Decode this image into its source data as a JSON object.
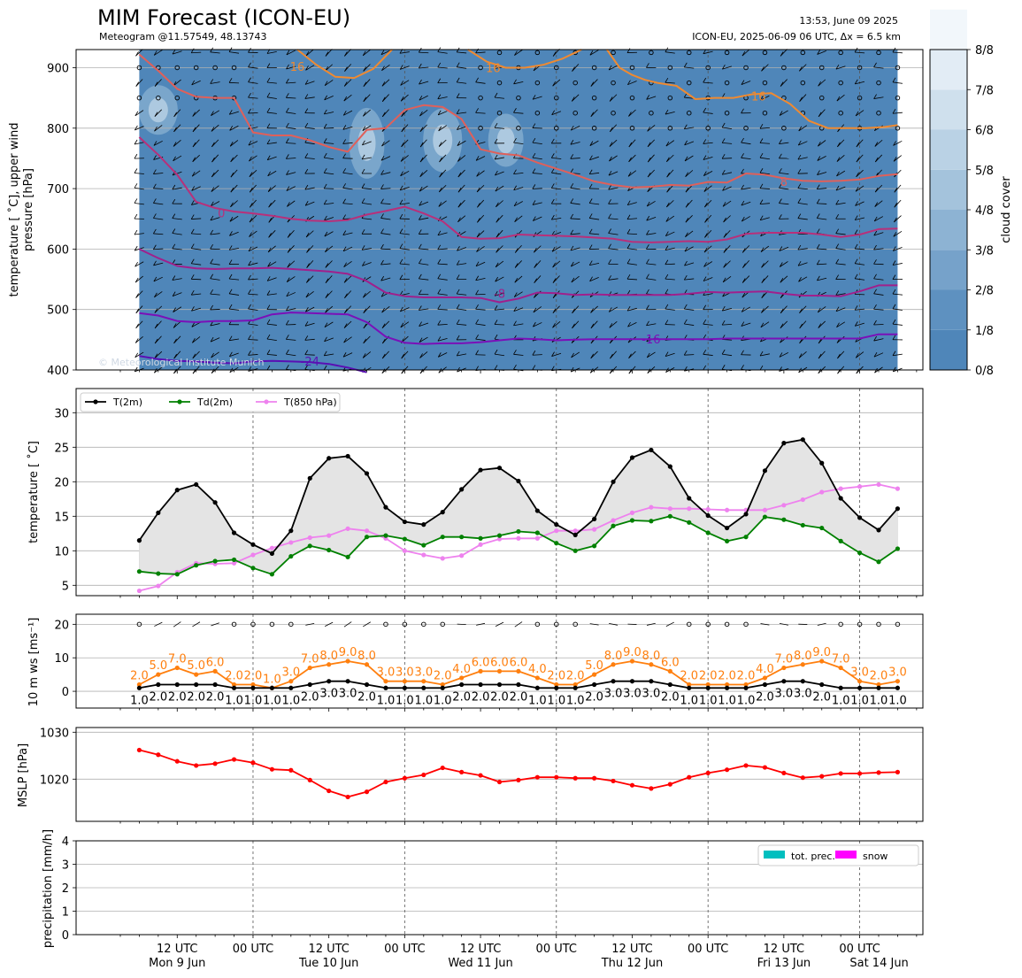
{
  "header": {
    "title": "MIM Forecast (ICON-EU)",
    "subtitle": "Meteogram @11.57549, 48.13743",
    "timestamp": "13:53, June 09 2025",
    "run_info": "ICON-EU, 2025-06-09 06 UTC, Δx = 6.5 km"
  },
  "colors": {
    "cloud_base": "#4f86b9",
    "t2m": "#000000",
    "td2m": "#008000",
    "t850": "#ee82ee",
    "wind_speed": "#ff7f0e",
    "mslp": "#ff0000",
    "tot_prec": "#00bfbf",
    "snow": "#ff00ff"
  },
  "time_axis": {
    "tick_labels": [
      {
        "line1": "12 UTC",
        "line2": "Mon 9 Jun",
        "hour": 12
      },
      {
        "line1": "00 UTC",
        "line2": "",
        "hour": 24
      },
      {
        "line1": "12 UTC",
        "line2": "Tue 10 Jun",
        "hour": 36
      },
      {
        "line1": "00 UTC",
        "line2": "",
        "hour": 48
      },
      {
        "line1": "12 UTC",
        "line2": "Wed 11 Jun",
        "hour": 60
      },
      {
        "line1": "00 UTC",
        "line2": "",
        "hour": 72
      },
      {
        "line1": "12 UTC",
        "line2": "Thu 12 Jun",
        "hour": 84
      },
      {
        "line1": "00 UTC",
        "line2": "",
        "hour": 96
      },
      {
        "line1": "12 UTC",
        "line2": "Fri 13 Jun",
        "hour": 108
      },
      {
        "line1": "00 UTC",
        "line2": "Sat 14 Jun",
        "hour": 120
      }
    ]
  },
  "chart_data": [
    {
      "type": "heatmap",
      "panel": "upper-air",
      "ylabel": "temperature [$^\\circ$C], upper wind\npressure [hPa]",
      "ylabel_lines": [
        "temperature [ ˚C], upper wind",
        "pressure [hPa]"
      ],
      "yticks": [
        400,
        500,
        600,
        700,
        800,
        900
      ],
      "ylim": [
        930,
        400
      ],
      "colorbar": {
        "label": "cloud cover",
        "ticks": [
          "0/8",
          "1/8",
          "2/8",
          "3/8",
          "4/8",
          "5/8",
          "6/8",
          "7/8",
          "8/8"
        ],
        "colors": [
          "#4f86b9",
          "#5e91c0",
          "#76a2ca",
          "#8db3d3",
          "#a4c3dc",
          "#bad2e5",
          "#cfe0ed",
          "#e2ecf5",
          "#f2f7fb"
        ]
      },
      "isotherm_labels": [
        "-24",
        "-16",
        "-8",
        "0",
        "8",
        "16",
        "16",
        "16"
      ],
      "isotherms": [
        {
          "label": "-24",
          "color": "#5a0fb4",
          "x": [
            6,
            9,
            12,
            15,
            18,
            21,
            24,
            27,
            30,
            33,
            36,
            39,
            42
          ],
          "y": [
            423,
            418,
            415,
            414,
            412,
            411,
            414,
            415,
            414,
            413,
            410,
            404,
            396
          ]
        },
        {
          "label": "-16",
          "color": "#7a10b8",
          "x": [
            6,
            9,
            12,
            15,
            18,
            21,
            24,
            27,
            30,
            33,
            36,
            39,
            42,
            45,
            48,
            51,
            54,
            57,
            60,
            63,
            66,
            69,
            72,
            75,
            78,
            81,
            84,
            87,
            90,
            93,
            96,
            99,
            102,
            105,
            108,
            111,
            114,
            117,
            120,
            123,
            126
          ],
          "y": [
            494,
            490,
            481,
            479,
            481,
            481,
            482,
            492,
            495,
            494,
            493,
            492,
            479,
            455,
            445,
            443,
            444,
            444,
            446,
            449,
            452,
            451,
            449,
            450,
            451,
            451,
            451,
            451,
            451,
            451,
            451,
            452,
            452,
            452,
            452,
            452,
            452,
            452,
            452,
            459,
            459
          ]
        },
        {
          "label": "-8",
          "color": "#a0208c",
          "x": [
            6,
            9,
            12,
            15,
            18,
            21,
            24,
            27,
            30,
            33,
            36,
            39,
            42,
            45,
            48,
            51,
            54,
            57,
            60,
            63,
            66,
            69,
            72,
            75,
            78,
            81,
            84,
            87,
            90,
            93,
            96,
            99,
            102,
            105,
            108,
            111,
            114,
            117,
            120,
            123,
            126
          ],
          "y": [
            600,
            585,
            572,
            568,
            567,
            568,
            568,
            569,
            567,
            565,
            563,
            559,
            547,
            528,
            522,
            520,
            520,
            520,
            519,
            512,
            518,
            528,
            527,
            524,
            525,
            524,
            524,
            524,
            524,
            526,
            529,
            528,
            529,
            530,
            526,
            523,
            523,
            522,
            530,
            540,
            540
          ]
        },
        {
          "label": "0",
          "color": "#b8307a",
          "x": [
            6,
            9,
            12,
            15,
            18,
            21,
            24,
            27,
            30,
            33,
            36,
            39,
            42,
            45,
            48,
            51,
            54,
            57,
            60,
            63,
            66,
            69,
            72,
            75,
            78,
            81,
            84,
            87,
            90,
            93,
            96,
            99,
            102,
            105,
            108,
            111,
            114,
            117,
            120,
            123,
            126
          ],
          "y": [
            785,
            756,
            723,
            678,
            668,
            662,
            659,
            655,
            650,
            647,
            646,
            648,
            657,
            663,
            670,
            659,
            646,
            620,
            617,
            618,
            624,
            623,
            622,
            621,
            619,
            617,
            612,
            611,
            612,
            613,
            612,
            616,
            625,
            627,
            627,
            627,
            624,
            620,
            624,
            633,
            634
          ]
        },
        {
          "label": "8",
          "color": "#e0605a",
          "x": [
            6,
            9,
            12,
            15,
            18,
            21,
            24,
            27,
            30,
            33,
            36,
            39,
            42,
            45,
            48,
            51,
            54,
            57,
            60,
            63,
            66,
            69,
            72,
            75,
            78,
            81,
            84,
            87,
            90,
            93,
            96,
            99,
            102,
            105,
            108,
            111,
            114,
            117,
            120,
            123,
            126
          ],
          "y": [
            922,
            895,
            865,
            852,
            850,
            850,
            793,
            788,
            788,
            780,
            769,
            761,
            797,
            800,
            830,
            838,
            835,
            815,
            765,
            758,
            755,
            743,
            733,
            723,
            712,
            706,
            702,
            703,
            706,
            705,
            711,
            710,
            725,
            723,
            717,
            713,
            712,
            713,
            715,
            721,
            724
          ]
        },
        {
          "label": "16",
          "color": "#f08a30",
          "x": [
            31,
            34,
            37,
            40,
            43,
            46
          ],
          "y": [
            930,
            905,
            885,
            883,
            898,
            930
          ]
        },
        {
          "label": "16",
          "color": "#f08a30",
          "x": [
            58,
            61,
            64,
            67,
            70,
            73,
            76
          ],
          "y": [
            930,
            910,
            900,
            900,
            905,
            915,
            930
          ]
        },
        {
          "label": "16",
          "color": "#f08a30",
          "x": [
            80,
            82,
            84,
            86,
            88,
            91,
            94,
            97,
            100,
            103,
            106,
            109,
            112,
            115,
            118,
            121,
            124,
            126
          ],
          "y": [
            930,
            900,
            888,
            880,
            875,
            870,
            848,
            850,
            850,
            856,
            858,
            840,
            812,
            800,
            800,
            800,
            802,
            805
          ]
        }
      ]
    },
    {
      "type": "line",
      "panel": "temperature",
      "ylabel": "temperature [ ˚C]",
      "ylim": [
        3.5,
        33.5
      ],
      "yticks": [
        5,
        10,
        15,
        20,
        25,
        30
      ],
      "legend": [
        "T(2m)",
        "Td(2m)",
        "T(850 hPa)"
      ],
      "legend_loc": "upper left",
      "grid": true,
      "x": [
        6,
        9,
        12,
        15,
        18,
        21,
        24,
        27,
        30,
        33,
        36,
        39,
        42,
        45,
        48,
        51,
        54,
        57,
        60,
        63,
        66,
        69,
        72,
        75,
        78,
        81,
        84,
        87,
        90,
        93,
        96,
        99,
        102,
        105,
        108,
        111,
        114,
        117,
        120,
        123,
        126
      ],
      "series": [
        {
          "name": "T(2m)",
          "values": [
            11.5,
            15.5,
            18.8,
            19.6,
            17.0,
            12.6,
            10.9,
            9.6,
            12.9,
            20.5,
            23.4,
            23.7,
            21.2,
            16.3,
            14.2,
            13.8,
            15.6,
            18.9,
            21.7,
            22.0,
            20.1,
            15.8,
            13.8,
            12.3,
            14.6,
            20.0,
            23.5,
            24.6,
            22.2,
            17.6,
            15.1,
            13.3,
            15.3,
            21.6,
            25.6,
            26.1,
            22.7,
            17.6,
            14.8,
            13.0,
            16.1
          ]
        },
        {
          "name": "Td(2m)",
          "values": [
            7.0,
            6.7,
            6.6,
            7.9,
            8.5,
            8.7,
            7.5,
            6.6,
            9.2,
            10.7,
            10.1,
            9.1,
            12.0,
            12.2,
            11.7,
            10.8,
            12.0,
            12.0,
            11.8,
            12.2,
            12.8,
            12.6,
            11.1,
            10.0,
            10.7,
            13.6,
            14.4,
            14.3,
            15.0,
            14.1,
            12.6,
            11.4,
            12.0,
            14.9,
            14.5,
            13.7,
            13.3,
            11.4,
            9.7,
            8.4,
            10.3
          ]
        },
        {
          "name": "T(850 hPa)",
          "values": [
            4.2,
            4.9,
            6.9,
            8.2,
            8.1,
            8.2,
            9.4,
            10.4,
            11.2,
            11.9,
            12.2,
            13.2,
            12.9,
            11.8,
            10.0,
            9.4,
            8.9,
            9.3,
            10.9,
            11.7,
            11.8,
            11.8,
            12.9,
            12.9,
            13.1,
            14.4,
            15.5,
            16.3,
            16.1,
            16.1,
            16.0,
            15.9,
            15.9,
            15.9,
            16.6,
            17.4,
            18.5,
            19.0,
            19.3,
            19.6,
            19.0
          ]
        }
      ]
    },
    {
      "type": "line",
      "panel": "wind",
      "ylabel": "10 m ws [ms⁻¹]",
      "ylim": [
        -5,
        23
      ],
      "yticks": [
        0,
        10,
        20
      ],
      "grid": true,
      "x": [
        6,
        9,
        12,
        15,
        18,
        21,
        24,
        27,
        30,
        33,
        36,
        39,
        42,
        45,
        48,
        51,
        54,
        57,
        60,
        63,
        66,
        69,
        72,
        75,
        78,
        81,
        84,
        87,
        90,
        93,
        96,
        99,
        102,
        105,
        108,
        111,
        114,
        117,
        120,
        123,
        126
      ],
      "series": [
        {
          "name": "gusts",
          "values": [
            2.0,
            5.0,
            7.0,
            5.0,
            6.0,
            2.0,
            2.0,
            1.0,
            3.0,
            7.0,
            8.0,
            9.0,
            8.0,
            3.0,
            3.0,
            3.0,
            2.0,
            4.0,
            6.0,
            6.0,
            6.0,
            4.0,
            2.0,
            2.0,
            5.0,
            8.0,
            9.0,
            8.0,
            6.0,
            2.0,
            2.0,
            2.0,
            2.0,
            4.0,
            7.0,
            8.0,
            9.0,
            7.0,
            3.0,
            2.0,
            3.0
          ]
        },
        {
          "name": "mean",
          "values": [
            1.0,
            2.0,
            2.0,
            2.0,
            2.0,
            1.0,
            1.0,
            1.0,
            1.0,
            2.0,
            3.0,
            3.0,
            2.0,
            1.0,
            1.0,
            1.0,
            1.0,
            2.0,
            2.0,
            2.0,
            2.0,
            1.0,
            1.0,
            1.0,
            2.0,
            3.0,
            3.0,
            3.0,
            2.0,
            1.0,
            1.0,
            1.0,
            1.0,
            2.0,
            3.0,
            3.0,
            2.0,
            1.0,
            1.0,
            1.0,
            1.0
          ]
        }
      ],
      "label_values": {
        "gusts": [
          "2.0",
          "5.0",
          "7.0",
          "5.0",
          "6.0",
          "2.0",
          "2.0",
          "1.0",
          "3.0",
          "7.0",
          "8.0",
          "9.0",
          "8.0",
          "3.0",
          "3.0",
          "3.0",
          "2.0",
          "4.0",
          "6.0",
          "6.0",
          "6.0",
          "4.0",
          "2.0",
          "2.0",
          "5.0",
          "8.0",
          "9.0",
          "8.0",
          "6.0",
          "2.0",
          "2.0",
          "2.0",
          "2.0",
          "4.0",
          "7.0",
          "8.0",
          "9.0",
          "7.0",
          "3.0",
          "2.0",
          "3.0"
        ],
        "mean": [
          "1.0",
          "2.0",
          "2.0",
          "2.0",
          "2.0",
          "1.0",
          "1.0",
          "1.0",
          "1.0",
          "2.0",
          "3.0",
          "3.0",
          "2.0",
          "1.0",
          "1.0",
          "1.0",
          "1.0",
          "2.0",
          "2.0",
          "2.0",
          "2.0",
          "1.0",
          "1.0",
          "1.0",
          "2.0",
          "3.0",
          "3.0",
          "3.0",
          "2.0",
          "1.0",
          "1.0",
          "1.0",
          "1.0",
          "2.0",
          "3.0",
          "3.0",
          "2.0",
          "1.0",
          "1.0",
          "1.0",
          "1.0"
        ]
      }
    },
    {
      "type": "line",
      "panel": "pressure",
      "ylabel": "MSLP [hPa]",
      "ylim": [
        1011,
        1031
      ],
      "yticks": [
        1020,
        1030
      ],
      "grid": true,
      "x": [
        6,
        9,
        12,
        15,
        18,
        21,
        24,
        27,
        30,
        33,
        36,
        39,
        42,
        45,
        48,
        51,
        54,
        57,
        60,
        63,
        66,
        69,
        72,
        75,
        78,
        81,
        84,
        87,
        90,
        93,
        96,
        99,
        102,
        105,
        108,
        111,
        114,
        117,
        120,
        123,
        126
      ],
      "series": [
        {
          "name": "MSLP",
          "values": [
            1026.2,
            1025.2,
            1023.8,
            1022.9,
            1023.3,
            1024.2,
            1023.5,
            1022.1,
            1021.9,
            1019.8,
            1017.5,
            1016.2,
            1017.3,
            1019.4,
            1020.2,
            1020.9,
            1022.4,
            1021.5,
            1020.8,
            1019.4,
            1019.8,
            1020.4,
            1020.4,
            1020.2,
            1020.2,
            1019.6,
            1018.7,
            1018.0,
            1018.9,
            1020.4,
            1021.3,
            1022.0,
            1022.9,
            1022.5,
            1021.3,
            1020.3,
            1020.6,
            1021.2,
            1021.2,
            1021.4,
            1021.5
          ]
        }
      ]
    },
    {
      "type": "bar",
      "panel": "precipitation",
      "ylabel": "precipitation [mm/h]",
      "ylim": [
        0,
        4
      ],
      "yticks": [
        0,
        1,
        2,
        3,
        4
      ],
      "legend": [
        "tot. prec.",
        "snow"
      ],
      "legend_loc": "upper right",
      "grid": true,
      "series": [
        {
          "name": "tot. prec.",
          "values": []
        },
        {
          "name": "snow",
          "values": []
        }
      ]
    }
  ],
  "watermark": "© Meteorological Institute Munich"
}
